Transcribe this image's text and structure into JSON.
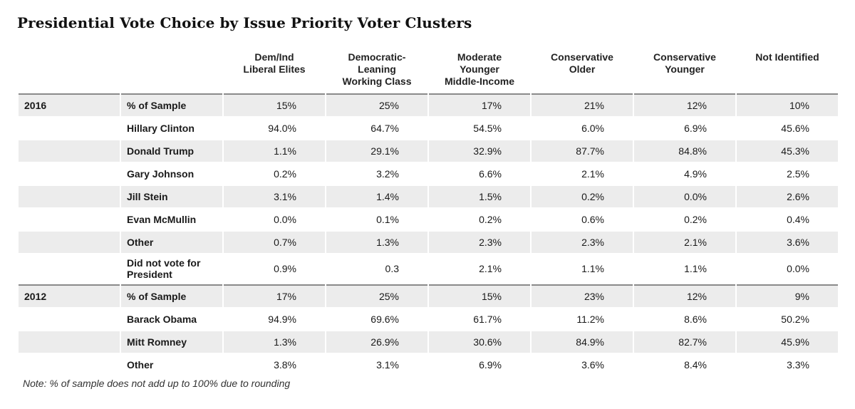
{
  "title": "Presidential Vote Choice by Issue Priority Voter Clusters",
  "note": "Note: % of sample does not add up to 100% due to rounding",
  "colors": {
    "row_shade": "#ececec",
    "divider": "#8a8a8a"
  },
  "chart_data": {
    "type": "table",
    "title": "Presidential Vote Choice by Issue Priority Voter Clusters",
    "columns": [
      "Dem/Ind\nLiberal Elites",
      "Democratic-\nLeaning\nWorking Class",
      "Moderate\nYounger\nMiddle-Income",
      "Conservative\nOlder",
      "Conservative\nYounger",
      "Not Identified"
    ],
    "sections": [
      {
        "year": "2016",
        "rows": [
          {
            "label": "% of Sample",
            "values": [
              "15%",
              "25%",
              "17%",
              "21%",
              "12%",
              "10%"
            ]
          },
          {
            "label": "Hillary Clinton",
            "values": [
              "94.0%",
              "64.7%",
              "54.5%",
              "6.0%",
              "6.9%",
              "45.6%"
            ]
          },
          {
            "label": "Donald Trump",
            "values": [
              "1.1%",
              "29.1%",
              "32.9%",
              "87.7%",
              "84.8%",
              "45.3%"
            ]
          },
          {
            "label": "Gary Johnson",
            "values": [
              "0.2%",
              "3.2%",
              "6.6%",
              "2.1%",
              "4.9%",
              "2.5%"
            ]
          },
          {
            "label": "Jill Stein",
            "values": [
              "3.1%",
              "1.4%",
              "1.5%",
              "0.2%",
              "0.0%",
              "2.6%"
            ]
          },
          {
            "label": "Evan McMullin",
            "values": [
              "0.0%",
              "0.1%",
              "0.2%",
              "0.6%",
              "0.2%",
              "0.4%"
            ]
          },
          {
            "label": "Other",
            "values": [
              "0.7%",
              "1.3%",
              "2.3%",
              "2.3%",
              "2.1%",
              "3.6%"
            ]
          },
          {
            "label": "Did not vote for President",
            "values": [
              "0.9%",
              "0.3",
              "2.1%",
              "1.1%",
              "1.1%",
              "0.0%"
            ]
          }
        ]
      },
      {
        "year": "2012",
        "rows": [
          {
            "label": "% of Sample",
            "values": [
              "17%",
              "25%",
              "15%",
              "23%",
              "12%",
              "9%"
            ]
          },
          {
            "label": "Barack Obama",
            "values": [
              "94.9%",
              "69.6%",
              "61.7%",
              "11.2%",
              "8.6%",
              "50.2%"
            ]
          },
          {
            "label": "Mitt Romney",
            "values": [
              "1.3%",
              "26.9%",
              "30.6%",
              "84.9%",
              "82.7%",
              "45.9%"
            ]
          },
          {
            "label": "Other",
            "values": [
              "3.8%",
              "3.1%",
              "6.9%",
              "3.6%",
              "8.4%",
              "3.3%"
            ]
          }
        ]
      }
    ]
  }
}
